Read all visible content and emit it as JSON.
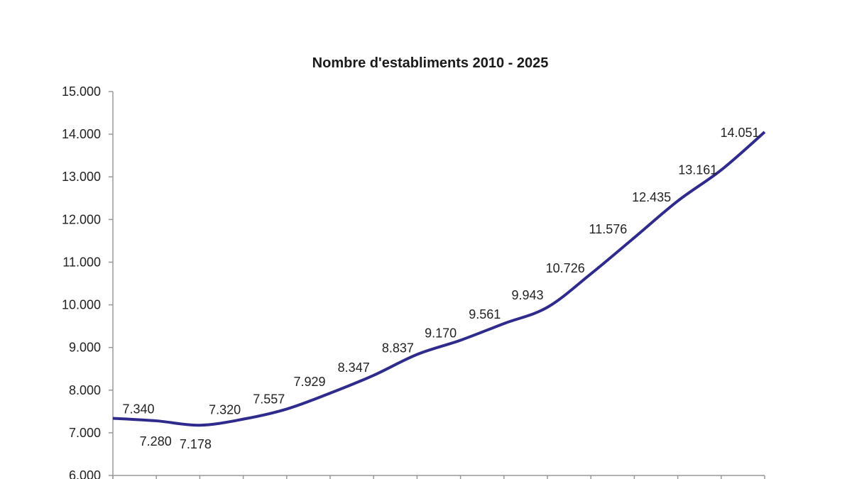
{
  "chart_data": {
    "type": "line",
    "title": "Nombre d'establiments 2010 - 2025",
    "xlabel": "",
    "ylabel": "",
    "ylim": [
      6000,
      15000
    ],
    "yticks": [
      6000,
      7000,
      8000,
      9000,
      10000,
      11000,
      12000,
      13000,
      14000,
      15000
    ],
    "ytick_labels": [
      "6.000",
      "7.000",
      "8.000",
      "9.000",
      "10.000",
      "11.000",
      "12.000",
      "13.000",
      "14.000",
      "15.000"
    ],
    "grid": false,
    "smooth": true,
    "line_color": "#2f2b8c",
    "series": [
      {
        "values": [
          7340,
          7280,
          7178,
          7320,
          7557,
          7929,
          8347,
          8837,
          9170,
          9561,
          9943,
          10726,
          11576,
          12435,
          13161,
          14051
        ],
        "data_labels": [
          "7.340",
          "7.280",
          "7.178",
          "7.320",
          "7.557",
          "7.929",
          "8.347",
          "8.837",
          "9.170",
          "9.561",
          "9.943",
          "10.726",
          "11.576",
          "12.435",
          "13.161",
          "14.051"
        ]
      }
    ]
  }
}
